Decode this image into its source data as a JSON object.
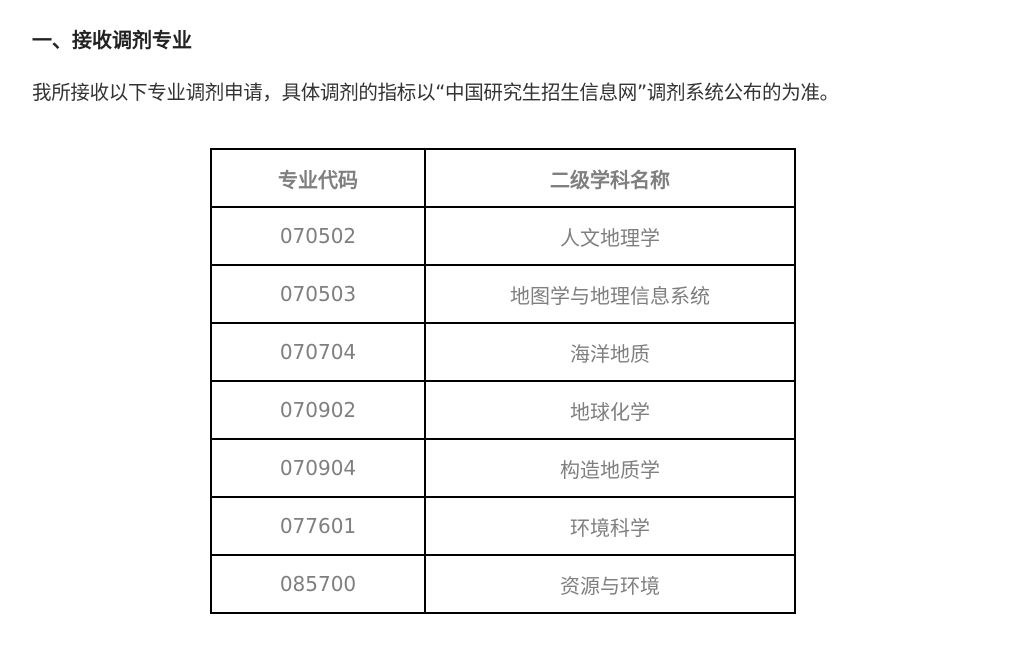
{
  "section_heading": "一、接收调剂专业",
  "intro": "我所接收以下专业调剂申请，具体调剂的指标以“中国研究生招生信息网”调剂系统公布的为准。",
  "table": {
    "headers": [
      "专业代码",
      "二级学科名称"
    ],
    "rows": [
      [
        "070502",
        "人文地理学"
      ],
      [
        "070503",
        "地图学与地理信息系统"
      ],
      [
        "070704",
        "海洋地质"
      ],
      [
        "070902",
        "地球化学"
      ],
      [
        "070904",
        "构造地质学"
      ],
      [
        "077601",
        "环境科学"
      ],
      [
        "085700",
        "资源与环境"
      ]
    ]
  }
}
